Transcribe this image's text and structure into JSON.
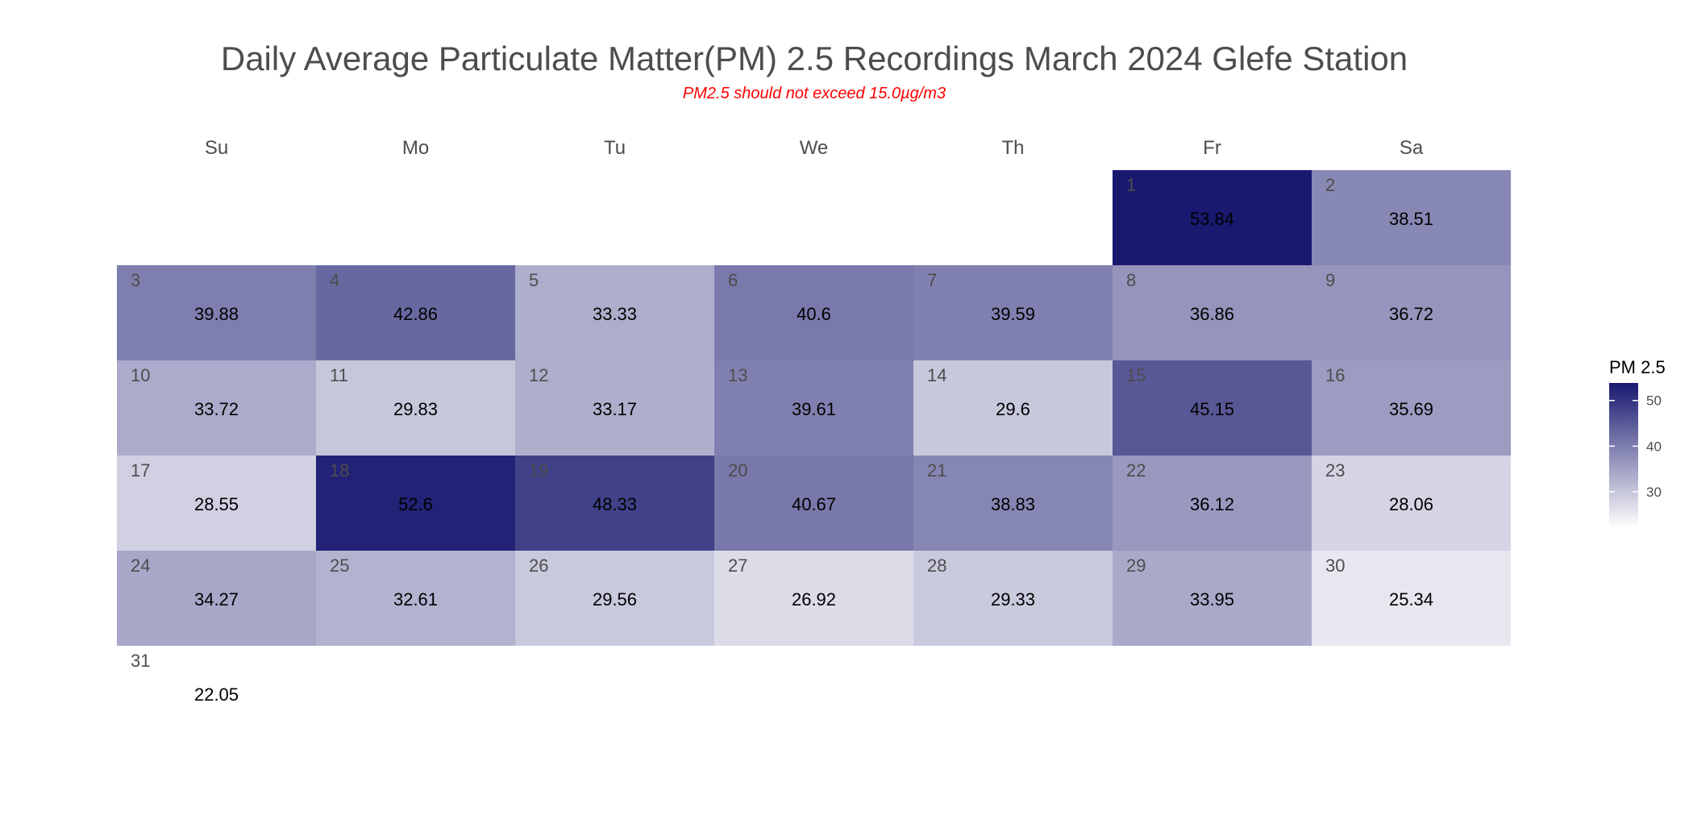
{
  "chart_data": {
    "type": "heatmap",
    "title": "Daily Average Particulate Matter(PM) 2.5 Recordings March 2024 Glefe Station",
    "subtitle": "PM2.5 should not exceed 15.0µg/m3",
    "weekdays": [
      "Su",
      "Mo",
      "Tu",
      "We",
      "Th",
      "Fr",
      "Sa"
    ],
    "first_weekday_index": 5,
    "days": [
      1,
      2,
      3,
      4,
      5,
      6,
      7,
      8,
      9,
      10,
      11,
      12,
      13,
      14,
      15,
      16,
      17,
      18,
      19,
      20,
      21,
      22,
      23,
      24,
      25,
      26,
      27,
      28,
      29,
      30,
      31
    ],
    "values": [
      53.84,
      38.51,
      39.88,
      42.86,
      33.33,
      40.6,
      39.59,
      36.86,
      36.72,
      33.72,
      29.83,
      33.17,
      39.61,
      29.6,
      45.15,
      35.69,
      28.55,
      52.6,
      48.33,
      40.67,
      38.83,
      36.12,
      28.06,
      34.27,
      32.61,
      29.56,
      26.92,
      29.33,
      33.95,
      25.34,
      22.05
    ],
    "legend": {
      "title": "PM 2.5",
      "ticks": [
        30,
        40,
        50
      ],
      "range": [
        22.05,
        53.84
      ],
      "placement": "right"
    },
    "colors": {
      "low": "#ffffff",
      "high": "#191970",
      "title": "#4d4d4d",
      "subtitle": "#ff0000",
      "weekday": "#4d4d4d",
      "day_number": "#4d4d4d",
      "value_text": "#000000"
    }
  }
}
